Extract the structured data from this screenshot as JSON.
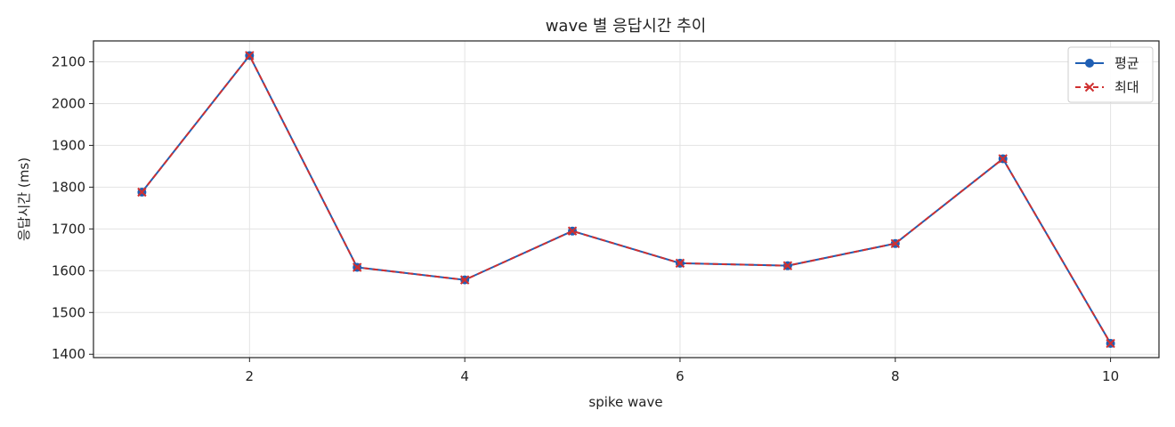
{
  "chart_data": {
    "type": "line",
    "title": "wave 별 응답시간 추이",
    "xlabel": "spike wave",
    "ylabel": "응답시간 (ms)",
    "x": [
      1,
      2,
      3,
      4,
      5,
      6,
      7,
      8,
      9,
      10
    ],
    "xlim": [
      0.55,
      10.45
    ],
    "ylim": [
      1392,
      2150
    ],
    "xticks": [
      2,
      4,
      6,
      8,
      10
    ],
    "yticks": [
      1400,
      1500,
      1600,
      1700,
      1800,
      1900,
      2000,
      2100
    ],
    "grid": true,
    "legend_position": "top-right",
    "series": [
      {
        "name": "평균",
        "color": "#1f5fb4",
        "marker": "circle",
        "line_style": "solid",
        "values": [
          1788,
          2115,
          1608,
          1578,
          1695,
          1618,
          1612,
          1665,
          1868,
          1426
        ]
      },
      {
        "name": "최대",
        "color": "#d03030",
        "marker": "x",
        "line_style": "dashed",
        "values": [
          1788,
          2115,
          1608,
          1578,
          1695,
          1618,
          1612,
          1665,
          1868,
          1426
        ]
      }
    ]
  }
}
